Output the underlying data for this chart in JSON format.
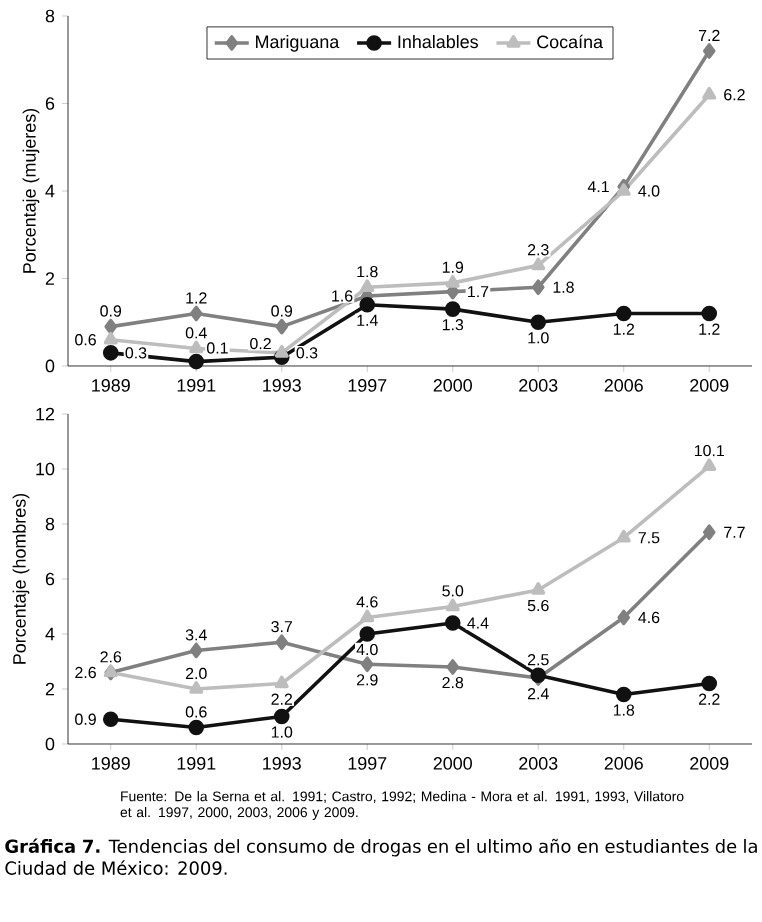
{
  "chart_data": [
    {
      "type": "line",
      "ylabel": "Porcentaje (mujeres)",
      "categories": [
        "1989",
        "1991",
        "1993",
        "1997",
        "2000",
        "2003",
        "2006",
        "2009"
      ],
      "ylim": [
        0,
        8
      ],
      "yticks": [
        0,
        2,
        4,
        6,
        8
      ],
      "legend": "top",
      "grid": false,
      "series": [
        {
          "name": "Mariguana",
          "color": "#808080",
          "marker": "diamond",
          "values": [
            0.9,
            1.2,
            0.9,
            1.6,
            1.7,
            1.8,
            4.1,
            7.2
          ],
          "value_labels": [
            "0.9",
            "1.2",
            "0.9",
            "1.6",
            "1.7",
            "1.8",
            "4.1",
            "7.2"
          ]
        },
        {
          "name": "Inhalables",
          "color": "#111111",
          "marker": "circle",
          "values": [
            0.3,
            0.1,
            0.2,
            1.4,
            1.3,
            1.0,
            1.2,
            1.2
          ],
          "value_labels": [
            "0.3",
            "0.1",
            "0.2",
            "1.4",
            "1.3",
            "1.0",
            "1.2",
            "1.2"
          ]
        },
        {
          "name": "Cocaína",
          "color": "#bdbdbd",
          "marker": "triangle",
          "values": [
            0.6,
            0.4,
            0.3,
            1.8,
            1.9,
            2.3,
            4.0,
            6.2
          ],
          "value_labels": [
            "0.6",
            "0.4",
            "0.3",
            "1.8",
            "1.9",
            "2.3",
            "4.0",
            "6.2"
          ]
        }
      ]
    },
    {
      "type": "line",
      "ylabel": "Porcentaje (hombres)",
      "categories": [
        "1989",
        "1991",
        "1993",
        "1997",
        "2000",
        "2003",
        "2006",
        "2009"
      ],
      "ylim": [
        0,
        12
      ],
      "yticks": [
        0,
        2,
        4,
        6,
        8,
        10,
        12
      ],
      "grid": false,
      "series": [
        {
          "color": "#808080",
          "marker": "diamond",
          "values": [
            2.6,
            3.4,
            3.7,
            2.9,
            2.8,
            2.4,
            4.6,
            7.7
          ],
          "value_labels": [
            "2.6",
            "3.4",
            "3.7",
            "2.9",
            "2.8",
            "2.4",
            "4.6",
            "7.7"
          ]
        },
        {
          "color": "#111111",
          "marker": "circle",
          "values": [
            0.9,
            0.6,
            1.0,
            4.0,
            4.4,
            2.5,
            1.8,
            2.2
          ],
          "value_labels": [
            "0.9",
            "0.6",
            "1.0",
            "4.0",
            "4.4",
            "2.5",
            "1.8",
            "2.2"
          ]
        },
        {
          "color": "#bdbdbd",
          "marker": "triangle",
          "values": [
            2.6,
            2.0,
            2.2,
            4.6,
            5.0,
            5.6,
            7.5,
            10.1
          ],
          "value_labels": [
            "2.6",
            "2.0",
            "2.2",
            "4.6",
            "5.0",
            "5.6",
            "7.5",
            "10.1"
          ]
        }
      ],
      "annotations": [
        "Fuente: De la Serna et al. 1991; Castro, 1992; Medina - Mora et al. 1991, 1993, Villatoro et al. 1997, 2000, 2003, 2006 y 2009.",
        "**Gráfica 7.** Tendencias del consumo de drogas en el ultimo año en estudiantes de la Ciudad de México: 2009."
      ]
    }
  ]
}
